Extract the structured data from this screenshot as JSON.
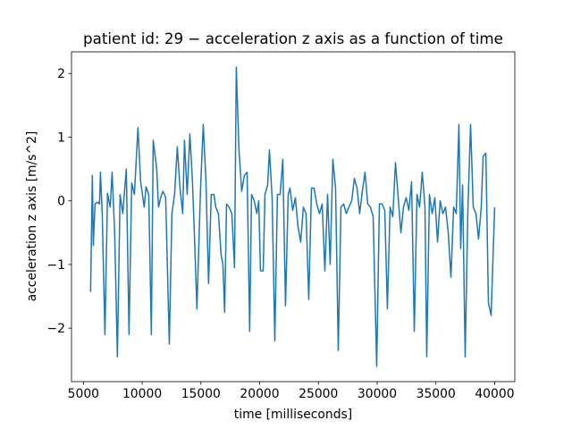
{
  "chart_data": {
    "type": "line",
    "title": "patient id: 29 - acceleration z axis as a function of time",
    "xlabel": "time [milliseconds]",
    "ylabel": "acceleration z axis [m/s^2]",
    "xlim": [
      3985,
      41715
    ],
    "ylim": [
      -2.84,
      2.34
    ],
    "xticks": [
      5000,
      10000,
      15000,
      20000,
      25000,
      30000,
      35000,
      40000
    ],
    "yticks": [
      -2,
      -1,
      0,
      1,
      2
    ],
    "grid": false,
    "x": [
      5610,
      5760,
      5840,
      5990,
      6220,
      6370,
      6450,
      6600,
      6830,
      7050,
      7280,
      7440,
      7660,
      7890,
      8120,
      8350,
      8650,
      8880,
      9110,
      9340,
      9640,
      9870,
      10170,
      10330,
      10560,
      10780,
      10940,
      11240,
      11390,
      11620,
      11770,
      12000,
      12310,
      12530,
      12760,
      12990,
      13220,
      13450,
      13600,
      13830,
      14060,
      14280,
      14440,
      14660,
      14970,
      15200,
      15430,
      15650,
      15880,
      16110,
      16260,
      16490,
      16720,
      16870,
      17020,
      17180,
      17400,
      17630,
      17860,
      18010,
      18240,
      18470,
      18700,
      18930,
      19150,
      19310,
      19540,
      19760,
      19920,
      20070,
      20300,
      20450,
      20680,
      20830,
      21060,
      21290,
      21510,
      21740,
      21970,
      22200,
      22430,
      22580,
      22810,
      23040,
      23260,
      23490,
      23720,
      23950,
      24180,
      24410,
      24630,
      24860,
      25090,
      25320,
      25550,
      25780,
      26000,
      26230,
      26460,
      26690,
      26920,
      27150,
      27370,
      27600,
      27830,
      28060,
      28290,
      28510,
      28740,
      28970,
      29200,
      29430,
      29660,
      29960,
      30190,
      30420,
      30650,
      30870,
      31100,
      31330,
      31560,
      31790,
      32020,
      32240,
      32470,
      32700,
      32930,
      33160,
      33390,
      33610,
      33840,
      34070,
      34220,
      34450,
      34680,
      34910,
      35140,
      35360,
      35590,
      35820,
      36050,
      36280,
      36510,
      36730,
      36960,
      37110,
      37270,
      37490,
      37720,
      37950,
      38180,
      38410,
      38630,
      38860,
      39020,
      39250,
      39470,
      39700,
      40000
    ],
    "series": [
      {
        "name": "acceleration z",
        "color": "#1f77b4",
        "values": [
          -1.43,
          0.4,
          -0.7,
          -0.05,
          -0.02,
          -0.05,
          0.45,
          -0.2,
          -2.1,
          0.12,
          -0.1,
          0.45,
          -0.5,
          -2.45,
          0.1,
          -0.2,
          0.5,
          -2.1,
          0.28,
          0.1,
          1.15,
          0.3,
          -0.1,
          0.22,
          0.1,
          -2.1,
          0.95,
          0.5,
          -0.1,
          0.08,
          0.15,
          0.05,
          -2.25,
          -0.2,
          0.1,
          0.85,
          0.2,
          -0.2,
          0.95,
          0.1,
          1.05,
          0.3,
          -0.5,
          -1.7,
          0.2,
          1.2,
          0.3,
          -1.3,
          0.1,
          0.1,
          -0.1,
          -0.2,
          -0.85,
          -1.0,
          -1.75,
          -0.05,
          -0.1,
          -0.2,
          -1.05,
          2.1,
          0.8,
          0.15,
          0.4,
          0.45,
          -2.05,
          0.1,
          0.0,
          -0.2,
          0.0,
          -1.1,
          -1.1,
          0.1,
          0.25,
          0.8,
          0.05,
          -2.2,
          0.1,
          0.1,
          0.65,
          -1.65,
          0.1,
          0.2,
          -0.15,
          0.05,
          -0.4,
          -0.65,
          -0.1,
          -0.2,
          -1.55,
          0.2,
          0.2,
          -0.05,
          -0.2,
          -0.05,
          -1.1,
          0.1,
          -1.0,
          0.65,
          0.2,
          -2.35,
          -0.1,
          -0.05,
          -0.2,
          -0.1,
          0.0,
          0.35,
          0.2,
          -0.2,
          0.15,
          0.45,
          -0.05,
          -0.1,
          -0.25,
          -2.6,
          -0.05,
          -0.05,
          -0.15,
          -1.7,
          -0.1,
          -0.25,
          0.6,
          0.05,
          -0.5,
          -0.1,
          0.05,
          -0.15,
          0.3,
          -2.05,
          0.1,
          -0.1,
          0.45,
          -0.1,
          -2.45,
          0.1,
          -0.2,
          0.05,
          -0.65,
          0.0,
          -0.2,
          -0.1,
          -0.5,
          -1.2,
          -0.1,
          -0.2,
          1.2,
          -0.75,
          0.25,
          -2.45,
          -0.15,
          1.2,
          -0.1,
          -0.2,
          -0.6,
          -0.1,
          0.7,
          0.75,
          -1.6,
          -1.8,
          -0.1
        ]
      }
    ]
  }
}
